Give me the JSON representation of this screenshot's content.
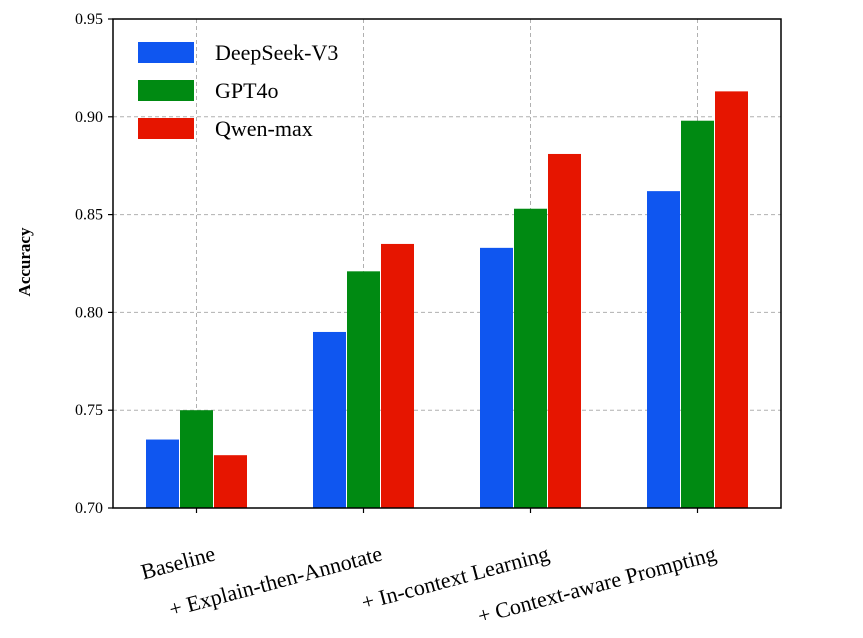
{
  "chart_data": {
    "type": "bar",
    "title": "",
    "xlabel": "",
    "ylabel": "Accuracy",
    "ylim": [
      0.7,
      0.95
    ],
    "yticks": [
      "0.70",
      "0.75",
      "0.80",
      "0.85",
      "0.90",
      "0.95"
    ],
    "categories": [
      "Baseline",
      "+ Explain-then-Annotate",
      "+ In-context Learning",
      "+ Context-aware Prompting"
    ],
    "series": [
      {
        "name": "DeepSeek-V3",
        "color": "#0f56f0",
        "values": [
          0.735,
          0.79,
          0.833,
          0.862
        ]
      },
      {
        "name": "GPT4o",
        "color": "#008a12",
        "values": [
          0.75,
          0.821,
          0.853,
          0.898
        ]
      },
      {
        "name": "Qwen-max",
        "color": "#e61500",
        "values": [
          0.727,
          0.835,
          0.881,
          0.913
        ]
      }
    ],
    "grid": true,
    "legend_position": "top-left"
  }
}
